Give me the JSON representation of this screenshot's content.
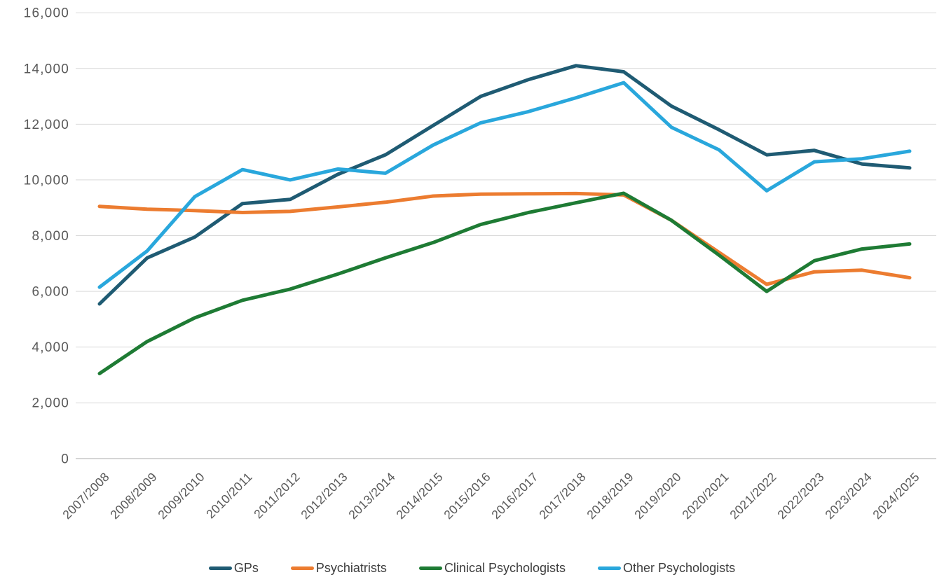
{
  "chart_data": {
    "type": "line",
    "title": "",
    "categories": [
      "2007/2008",
      "2008/2009",
      "2009/2010",
      "2010/2011",
      "2011/2012",
      "2012/2013",
      "2013/2014",
      "2014/2015",
      "2015/2016",
      "2016/2017",
      "2017/2018",
      "2018/2019",
      "2019/2020",
      "2020/2021",
      "2021/2022",
      "2022/2023",
      "2023/2024",
      "2024/2025"
    ],
    "series": [
      {
        "name": "GPs",
        "color": "#1F5B73",
        "values": [
          5550,
          7200,
          7950,
          9150,
          9300,
          10200,
          10900,
          11950,
          13000,
          13600,
          14100,
          13880,
          12650,
          11800,
          10900,
          11060,
          10570,
          10430
        ]
      },
      {
        "name": "Psychiatrists",
        "color": "#EC7C30",
        "values": [
          9050,
          8950,
          8900,
          8830,
          8870,
          9030,
          9200,
          9420,
          9490,
          9500,
          9510,
          9460,
          8550,
          7400,
          6250,
          6700,
          6760,
          6490
        ]
      },
      {
        "name": "Clinical Psychologists",
        "color": "#1E7B34",
        "values": [
          3050,
          4200,
          5050,
          5680,
          6080,
          6620,
          7200,
          7750,
          8400,
          8830,
          9180,
          9520,
          8550,
          7300,
          6000,
          7100,
          7520,
          7700
        ]
      },
      {
        "name": "Other Psychologists",
        "color": "#29A7DC",
        "values": [
          6150,
          7450,
          9400,
          10370,
          10000,
          10390,
          10240,
          11250,
          12050,
          12450,
          12950,
          13490,
          11890,
          11080,
          9610,
          10650,
          10760,
          11030
        ]
      }
    ],
    "y_axis": {
      "min": 0,
      "max": 16000,
      "step": 2000,
      "tick_labels": [
        "0",
        "2,000",
        "4,000",
        "6,000",
        "8,000",
        "10,000",
        "12,000",
        "14,000",
        "16,000"
      ]
    },
    "x_axis": {
      "label_rotation_degrees": 45
    },
    "legend_position": "bottom",
    "grid": true,
    "styling": {
      "background": "#FFFFFF",
      "grid_color": "#D9D9D9",
      "zero_line_color": "#C8C8C8",
      "axis_label_color": "#595959",
      "legend_text_color": "#3D3D3D"
    }
  }
}
